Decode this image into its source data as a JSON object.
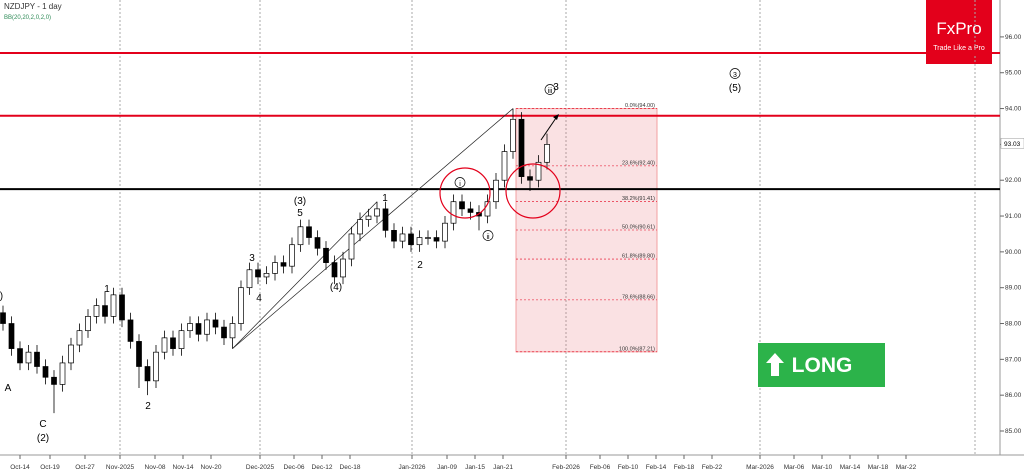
{
  "chart_data": {
    "type": "candlestick",
    "title": "NZDJPY - 1 day",
    "subtitle": "BB(20,20,2,0,2,0)",
    "x_labels": [
      "Oct-14",
      "Oct-19",
      "Oct-27",
      "Nov-2025",
      "Nov-08",
      "Nov-14",
      "Nov-20",
      "Dec-2025",
      "Dec-06",
      "Dec-12",
      "Dec-18",
      "Jan-2026",
      "Jan-09",
      "Jan-15",
      "Jan-21",
      "Feb-2026",
      "Feb-06",
      "Feb-10",
      "Feb-14",
      "Feb-18",
      "Feb-22",
      "Mar-2026",
      "Mar-06",
      "Mar-10",
      "Mar-14",
      "Mar-18",
      "Mar-22"
    ],
    "open": [
      88.3,
      88.0,
      87.3,
      86.9,
      87.2,
      86.8,
      86.5,
      86.3,
      86.9,
      87.4,
      87.8,
      88.2,
      88.5,
      88.2,
      88.8,
      88.1,
      87.5,
      86.8,
      86.4,
      87.2,
      87.6,
      87.3,
      87.8,
      88.0,
      87.7,
      88.1,
      87.9,
      87.6,
      88.0,
      89.0,
      89.5,
      89.3,
      89.4,
      89.7,
      89.6,
      90.2,
      90.7,
      90.4,
      90.1,
      89.7,
      89.3,
      89.8,
      90.5,
      90.9,
      91.0,
      91.2,
      90.6,
      90.3,
      90.5,
      90.2,
      90.4,
      90.4,
      90.3,
      90.8,
      91.4,
      91.2,
      91.1,
      91.0,
      91.4,
      92.0,
      92.8,
      93.7,
      92.1,
      92.0,
      92.5
    ],
    "high": [
      88.5,
      88.2,
      87.5,
      87.4,
      87.4,
      87.0,
      86.7,
      87.1,
      87.6,
      88.0,
      88.4,
      88.7,
      88.9,
      89.0,
      89.0,
      88.3,
      87.7,
      87.0,
      87.4,
      87.8,
      87.8,
      88.0,
      88.2,
      88.2,
      88.3,
      88.3,
      88.1,
      88.2,
      89.2,
      89.7,
      89.7,
      89.6,
      89.9,
      89.9,
      90.4,
      90.9,
      90.9,
      90.6,
      90.3,
      89.9,
      90.0,
      90.7,
      91.1,
      91.2,
      91.4,
      91.4,
      90.8,
      90.7,
      90.7,
      90.6,
      90.6,
      90.6,
      91.0,
      91.6,
      91.6,
      91.4,
      91.3,
      91.6,
      92.2,
      93.0,
      94.0,
      93.9,
      92.3,
      92.7,
      93.3
    ],
    "low": [
      87.8,
      87.1,
      86.7,
      86.7,
      86.6,
      86.3,
      85.5,
      86.1,
      86.7,
      87.2,
      87.6,
      88.0,
      88.0,
      88.0,
      87.9,
      87.3,
      86.2,
      86.0,
      86.2,
      87.0,
      87.1,
      87.1,
      87.6,
      87.5,
      87.5,
      87.7,
      87.4,
      87.3,
      87.8,
      88.8,
      89.1,
      89.1,
      89.2,
      89.4,
      89.4,
      90.0,
      90.2,
      89.9,
      89.5,
      89.1,
      89.1,
      89.6,
      90.3,
      90.7,
      90.8,
      90.4,
      90.1,
      90.1,
      90.0,
      90.0,
      90.2,
      90.1,
      90.1,
      90.6,
      91.0,
      90.9,
      90.6,
      90.8,
      91.2,
      91.8,
      92.6,
      91.9,
      91.7,
      91.8,
      92.3
    ],
    "close": [
      88.0,
      87.3,
      86.9,
      87.2,
      86.8,
      86.5,
      86.3,
      86.9,
      87.4,
      87.8,
      88.2,
      88.5,
      88.2,
      88.8,
      88.1,
      87.5,
      86.8,
      86.4,
      87.2,
      87.6,
      87.3,
      87.8,
      88.0,
      87.7,
      88.1,
      87.9,
      87.6,
      88.0,
      89.0,
      89.5,
      89.3,
      89.4,
      89.7,
      89.6,
      90.2,
      90.7,
      90.4,
      90.1,
      89.7,
      89.3,
      89.8,
      90.5,
      90.9,
      91.0,
      91.2,
      90.6,
      90.3,
      90.5,
      90.2,
      90.4,
      90.4,
      90.3,
      90.8,
      91.4,
      91.2,
      91.1,
      91.0,
      91.4,
      92.0,
      92.8,
      93.7,
      92.1,
      92.0,
      92.5,
      93.0
    ],
    "ylim": [
      84.33,
      97.03
    ],
    "yticks": [
      {
        "value": 85,
        "label": "85.00"
      },
      {
        "value": 86,
        "label": "86.00"
      },
      {
        "value": 87,
        "label": "87.00"
      },
      {
        "value": 88,
        "label": "88.00"
      },
      {
        "value": 89,
        "label": "89.00"
      },
      {
        "value": 90,
        "label": "90.00"
      },
      {
        "value": 91,
        "label": "91.00"
      },
      {
        "value": 92,
        "label": "92.00"
      },
      {
        "value": 93,
        "label": "93.00"
      },
      {
        "value": 94,
        "label": "94.00"
      },
      {
        "value": 95,
        "label": "95.00"
      },
      {
        "value": 96,
        "label": "96.00"
      }
    ],
    "last_price": {
      "value": 93.03,
      "label": "93.03"
    },
    "levels": [
      {
        "value": 95.55,
        "color": "#e3001b"
      },
      {
        "value": 93.8,
        "color": "#e3001b"
      },
      {
        "value": 91.75,
        "color": "#000000"
      }
    ],
    "fibonacci": [
      {
        "value": 94.0,
        "label": "0.0%(94.00)"
      },
      {
        "value": 92.4,
        "label": "23.6%(92.40)"
      },
      {
        "value": 91.41,
        "label": "38.2%(91.41)"
      },
      {
        "value": 90.61,
        "label": "50.0%(90.61)"
      },
      {
        "value": 89.8,
        "label": "61.8%(89.80)"
      },
      {
        "value": 88.66,
        "label": "78.6%(88.66)"
      },
      {
        "value": 87.21,
        "label": "100.0%(87.21)"
      }
    ],
    "wave_labels": [
      "(1)",
      "A",
      "B",
      "C",
      "(2)",
      "1",
      "2",
      "3",
      "4",
      "5",
      "(3)",
      "(4)",
      "1",
      "2",
      "i",
      "ii",
      "iii",
      "3",
      "3",
      "(5)"
    ],
    "signal": "LONG"
  },
  "logo": {
    "name": "FxPro",
    "tagline": "Trade Like a Pro"
  }
}
